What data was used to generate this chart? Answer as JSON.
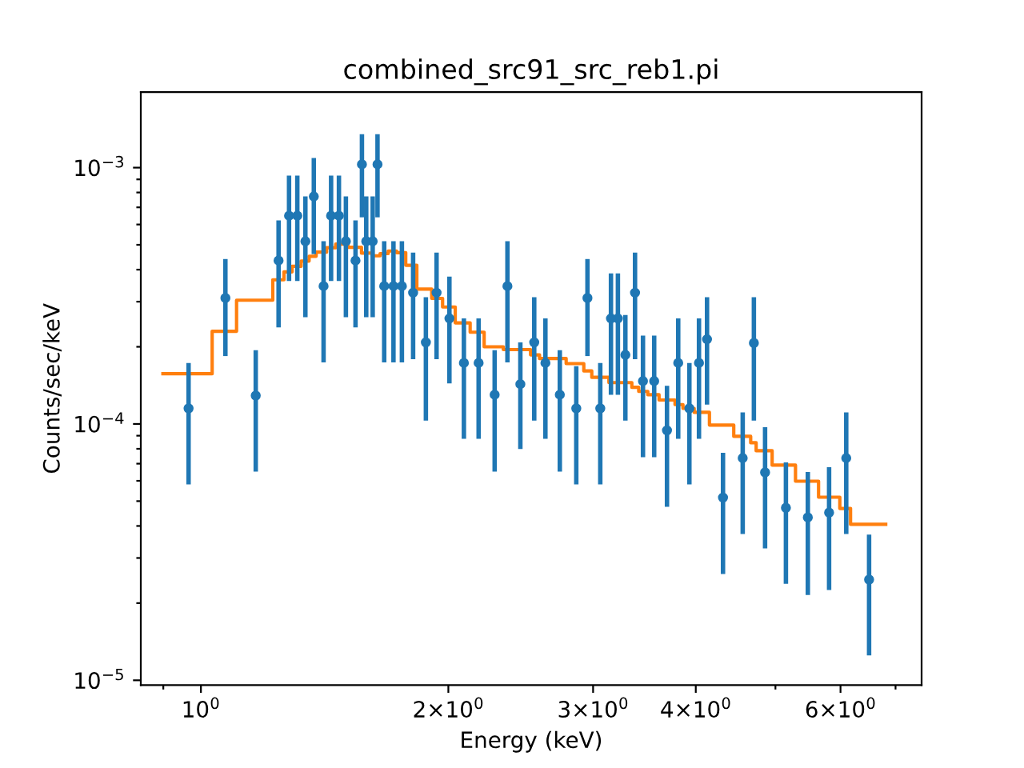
{
  "chart_data": {
    "type": "scatter",
    "title": "combined_src91_src_reb1.pi",
    "xlabel": "Energy (keV)",
    "ylabel": "Counts/sec/keV",
    "log": "xy",
    "grid": false,
    "legend": false,
    "xlim": [
      0.845,
      7.53
    ],
    "ylim": [
      9.58e-06,
      0.00197
    ],
    "xticks": [
      {
        "value": 0.9,
        "label": null
      },
      {
        "value": 1,
        "label": "10$^{0}$"
      },
      {
        "value": 2,
        "label": "2×10$^{0}$"
      },
      {
        "value": 3,
        "label": "3×10$^{0}$"
      },
      {
        "value": 4,
        "label": "4×10$^{0}$"
      },
      {
        "value": 5,
        "label": null
      },
      {
        "value": 6,
        "label": "6×10$^{0}$"
      },
      {
        "value": 7,
        "label": null
      }
    ],
    "yticks": [
      {
        "value": 1e-05,
        "label": "10$^{−5}$"
      },
      {
        "value": 2e-05,
        "label": null
      },
      {
        "value": 3e-05,
        "label": null
      },
      {
        "value": 4e-05,
        "label": null
      },
      {
        "value": 5e-05,
        "label": null
      },
      {
        "value": 6e-05,
        "label": null
      },
      {
        "value": 7e-05,
        "label": null
      },
      {
        "value": 8e-05,
        "label": null
      },
      {
        "value": 9e-05,
        "label": null
      },
      {
        "value": 0.0001,
        "label": "10$^{−4}$"
      },
      {
        "value": 0.0002,
        "label": null
      },
      {
        "value": 0.0003,
        "label": null
      },
      {
        "value": 0.0004,
        "label": null
      },
      {
        "value": 0.0005,
        "label": null
      },
      {
        "value": 0.0006,
        "label": null
      },
      {
        "value": 0.0007,
        "label": null
      },
      {
        "value": 0.0008,
        "label": null
      },
      {
        "value": 0.0009,
        "label": null
      },
      {
        "value": 0.001,
        "label": "10$^{−3}$"
      }
    ],
    "series": [
      {
        "marker": "circle",
        "color": "#1f77b4",
        "x": [
          0.966,
          1.071,
          1.166,
          1.243,
          1.28,
          1.31,
          1.34,
          1.372,
          1.41,
          1.44,
          1.472,
          1.501,
          1.542,
          1.57,
          1.589,
          1.618,
          1.64,
          1.671,
          1.715,
          1.756,
          1.812,
          1.878,
          1.935,
          2.006,
          2.089,
          2.177,
          2.277,
          2.36,
          2.447,
          2.544,
          2.625,
          2.733,
          2.862,
          2.953,
          3.061,
          3.154,
          3.216,
          3.284,
          3.374,
          3.45,
          3.56,
          3.69,
          3.808,
          3.929,
          4.036,
          4.128,
          4.317,
          4.562,
          4.707,
          4.857,
          5.149,
          5.475,
          5.811,
          6.097,
          6.5
        ],
        "values": [
          0.000115,
          0.00031,
          0.000129,
          0.000434,
          0.000649,
          0.000649,
          0.000516,
          0.000772,
          0.000345,
          0.000649,
          0.000649,
          0.000516,
          0.000434,
          0.00103,
          0.000516,
          0.000516,
          0.00103,
          0.000345,
          0.000345,
          0.000345,
          0.000325,
          0.000208,
          0.000325,
          0.000258,
          0.000173,
          0.000173,
          0.00013,
          0.000345,
          0.000143,
          0.000208,
          0.000173,
          0.00013,
          0.000115,
          0.00031,
          0.000115,
          0.000258,
          0.000258,
          0.000186,
          0.000325,
          0.000147,
          0.000147,
          9.44e-05,
          0.000173,
          0.000115,
          0.000173,
          0.000214,
          5.16e-05,
          7.36e-05,
          0.000207,
          6.47e-05,
          4.71e-05,
          4.32e-05,
          4.51e-05,
          7.36e-05,
          2.47e-05
        ],
        "errors": [
          [
            5.81e-05,
            0.000173
          ],
          [
            0.000184,
            0.00044
          ],
          [
            6.52e-05,
            0.000194
          ],
          [
            0.000238,
            0.000622
          ],
          [
            0.000361,
            0.000931
          ],
          [
            0.000361,
            0.000931
          ],
          [
            0.000261,
            0.000772
          ],
          [
            0.00046,
            0.00109
          ],
          [
            0.000174,
            0.000516
          ],
          [
            0.000361,
            0.000931
          ],
          [
            0.000361,
            0.000931
          ],
          [
            0.000261,
            0.000772
          ],
          [
            0.000238,
            0.000622
          ],
          [
            0.00064,
            0.00135
          ],
          [
            0.000261,
            0.000772
          ],
          [
            0.000261,
            0.000772
          ],
          [
            0.00064,
            0.00135
          ],
          [
            0.000174,
            0.000516
          ],
          [
            0.000174,
            0.000516
          ],
          [
            0.000174,
            0.000516
          ],
          [
            0.000179,
            0.000466
          ],
          [
            0.000103,
            0.000312
          ],
          [
            0.000179,
            0.000466
          ],
          [
            0.000144,
            0.000376
          ],
          [
            8.75e-05,
            0.000258
          ],
          [
            8.75e-05,
            0.000258
          ],
          [
            6.52e-05,
            0.000194
          ],
          [
            0.000174,
            0.000516
          ],
          [
            7.98e-05,
            0.000208
          ],
          [
            0.000103,
            0.000312
          ],
          [
            8.75e-05,
            0.000258
          ],
          [
            6.52e-05,
            0.000194
          ],
          [
            5.81e-05,
            0.000168
          ],
          [
            0.000184,
            0.00044
          ],
          [
            5.81e-05,
            0.000173
          ],
          [
            0.00013,
            0.000387
          ],
          [
            0.00013,
            0.000387
          ],
          [
            0.000103,
            0.000266
          ],
          [
            0.000179,
            0.000466
          ],
          [
            7.42e-05,
            0.000221
          ],
          [
            7.42e-05,
            0.000221
          ],
          [
            4.75e-05,
            0.000141
          ],
          [
            8.75e-05,
            0.000258
          ],
          [
            5.81e-05,
            0.000173
          ],
          [
            8.75e-05,
            0.000258
          ],
          [
            0.000119,
            0.000312
          ],
          [
            2.6e-05,
            7.72e-05
          ],
          [
            3.72e-05,
            0.000111
          ],
          [
            0.000103,
            0.000312
          ],
          [
            3.27e-05,
            9.72e-05
          ],
          [
            2.38e-05,
            7.08e-05
          ],
          [
            2.15e-05,
            6.49e-05
          ],
          [
            2.25e-05,
            6.78e-05
          ],
          [
            3.72e-05,
            0.000111
          ],
          [
            1.25e-05,
            3.7e-05
          ]
        ]
      },
      {
        "type": "step",
        "color": "#ff7f0e",
        "x": [
          0.899,
          1.032,
          1.105,
          1.223,
          1.262,
          1.291,
          1.324,
          1.354,
          1.381,
          1.422,
          1.459,
          1.51,
          1.568,
          1.615,
          1.652,
          1.69,
          1.73,
          1.775,
          1.831,
          1.909,
          1.968,
          2.039,
          2.126,
          2.211,
          2.333,
          2.518,
          2.582,
          2.782,
          2.923,
          2.989,
          3.136,
          3.344,
          3.409,
          3.497,
          3.609,
          3.774,
          3.859,
          3.982,
          4.156,
          4.449,
          4.665,
          4.737,
          4.954,
          5.289,
          5.642,
          5.988,
          6.171,
          6.81
        ],
        "values": [
          0.000157,
          0.00023,
          0.000304,
          0.000365,
          0.000392,
          0.000412,
          0.000432,
          0.000451,
          0.000468,
          0.000487,
          0.000503,
          0.000489,
          0.000464,
          0.000453,
          0.000462,
          0.000473,
          0.000466,
          0.000416,
          0.000336,
          0.000309,
          0.000286,
          0.000248,
          0.000228,
          0.0002,
          0.000195,
          0.000186,
          0.00018,
          0.000172,
          0.000161,
          0.000152,
          0.000145,
          0.000139,
          0.000134,
          0.00013,
          0.000124,
          0.000119,
          0.000115,
          0.000111,
          9.9e-05,
          8.95e-05,
          8.45e-05,
          7.86e-05,
          6.91e-05,
          5.98e-05,
          5.18e-05,
          4.68e-05,
          4.06e-05,
          4.06e-05
        ]
      }
    ]
  }
}
